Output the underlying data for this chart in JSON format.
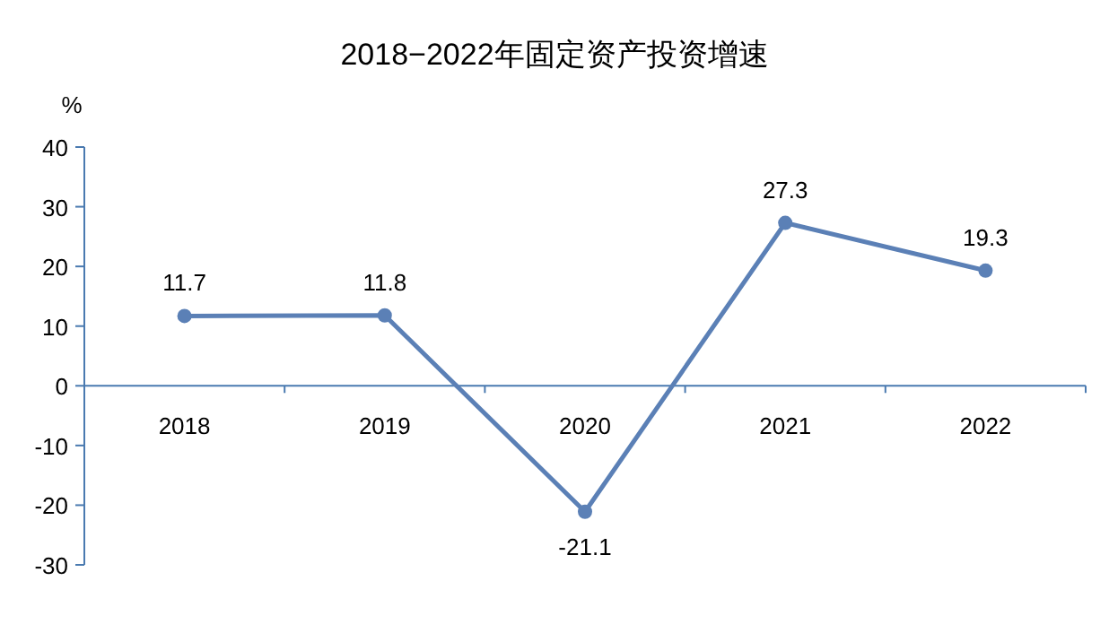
{
  "chart_data": {
    "type": "line",
    "title": "2018−2022年固定资产投资增速",
    "ylabel": "%",
    "categories": [
      "2018",
      "2019",
      "2020",
      "2021",
      "2022"
    ],
    "series": [
      {
        "color": "#5b80b6",
        "values": [
          11.7,
          11.8,
          -21.1,
          27.3,
          19.3
        ]
      }
    ],
    "ylim": [
      -30,
      40
    ],
    "yticks": [
      -30,
      -20,
      -10,
      0,
      10,
      20,
      30,
      40
    ],
    "data_labels": true,
    "marker": "circle",
    "line_style": "solid",
    "grid": false
  }
}
